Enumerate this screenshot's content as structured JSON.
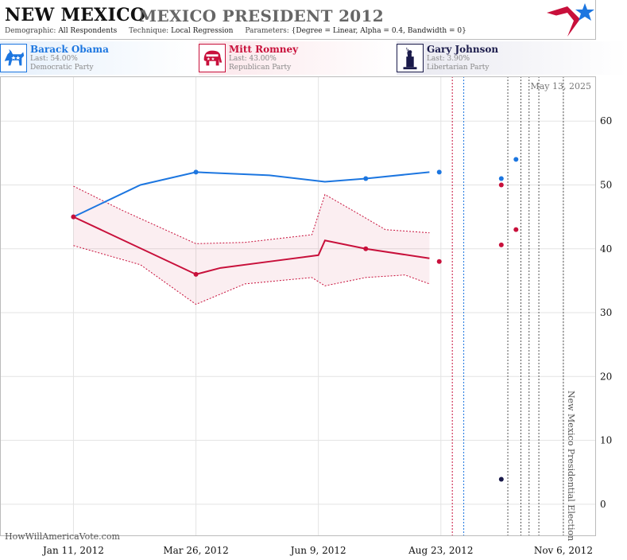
{
  "header": {
    "state": "NEW MEXICO",
    "race": "MEXICO PRESIDENT 2012",
    "demographic_label": "Demographic:",
    "demographic_value": "All Respondents",
    "technique_label": "Technique:",
    "technique_value": "Local Regression",
    "parameters_label": "Parameters:",
    "parameters_value": "{Degree = Linear, Alpha = 0.4, Bandwidth = 0}"
  },
  "candidates": [
    {
      "name": "Barack Obama",
      "last": "Last: 54.00%",
      "party": "Democratic Party",
      "color": "#1c76e0",
      "icon": "democrat-donkey-icon"
    },
    {
      "name": "Mitt Romney",
      "last": "Last: 43.00%",
      "party": "Republican Party",
      "color": "#c8103b",
      "icon": "republican-elephant-icon"
    },
    {
      "name": "Gary Johnson",
      "last": "Last: 3.90%",
      "party": "Libertarian Party",
      "color": "#1a1a4a",
      "icon": "libertarian-liberty-icon"
    }
  ],
  "chart_data": {
    "type": "line",
    "date_stamp": "May 13, 2025",
    "watermark": "HowWillAmericaVote.com",
    "x_ticks": [
      "Jan 11, 2012",
      "Mar 26, 2012",
      "Jun 9, 2012",
      "Aug 23, 2012",
      "Nov 6, 2012"
    ],
    "x_range": [
      "2011-11-27",
      "2012-11-26"
    ],
    "y_ticks": [
      0,
      10,
      20,
      30,
      40,
      50,
      60
    ],
    "ylim": [
      -5,
      67
    ],
    "grid": true,
    "series": [
      {
        "name": "Barack Obama",
        "color": "#1c76e0",
        "line": [
          [
            "2012-01-11",
            45
          ],
          [
            "2012-02-21",
            50
          ],
          [
            "2012-03-26",
            52
          ],
          [
            "2012-05-10",
            51.5
          ],
          [
            "2012-06-13",
            50.5
          ],
          [
            "2012-07-08",
            51
          ],
          [
            "2012-08-16",
            52
          ]
        ],
        "points": [
          [
            "2012-01-11",
            45
          ],
          [
            "2012-03-26",
            52
          ],
          [
            "2012-07-08",
            51
          ],
          [
            "2012-08-22",
            52
          ],
          [
            "2012-09-29",
            51
          ],
          [
            "2012-10-08",
            54
          ]
        ]
      },
      {
        "name": "Mitt Romney",
        "color": "#c8103b",
        "line": [
          [
            "2012-01-11",
            45
          ],
          [
            "2012-03-26",
            36
          ],
          [
            "2012-04-10",
            37
          ],
          [
            "2012-05-10",
            38
          ],
          [
            "2012-06-09",
            39
          ],
          [
            "2012-06-13",
            41.3
          ],
          [
            "2012-07-08",
            40
          ],
          [
            "2012-08-16",
            38.5
          ]
        ],
        "band_upper": [
          [
            "2012-01-11",
            49.8
          ],
          [
            "2012-02-10",
            46
          ],
          [
            "2012-03-26",
            40.8
          ],
          [
            "2012-04-25",
            41
          ],
          [
            "2012-06-05",
            42.2
          ],
          [
            "2012-06-13",
            48.5
          ],
          [
            "2012-06-30",
            46
          ],
          [
            "2012-07-20",
            43
          ],
          [
            "2012-08-16",
            42.5
          ]
        ],
        "band_lower": [
          [
            "2012-01-11",
            40.5
          ],
          [
            "2012-02-21",
            37.5
          ],
          [
            "2012-03-26",
            31.3
          ],
          [
            "2012-04-25",
            34.5
          ],
          [
            "2012-06-05",
            35.5
          ],
          [
            "2012-06-13",
            34.2
          ],
          [
            "2012-07-08",
            35.5
          ],
          [
            "2012-08-01",
            35.9
          ],
          [
            "2012-08-16",
            34.5
          ]
        ],
        "points": [
          [
            "2012-01-11",
            45
          ],
          [
            "2012-03-26",
            36
          ],
          [
            "2012-07-08",
            40
          ],
          [
            "2012-08-22",
            38
          ],
          [
            "2012-09-29",
            40.6
          ],
          [
            "2012-09-29",
            50
          ],
          [
            "2012-10-08",
            43
          ]
        ]
      },
      {
        "name": "Gary Johnson",
        "color": "#1a1a4a",
        "line": [],
        "points": [
          [
            "2012-09-29",
            3.9
          ]
        ]
      }
    ],
    "event_lines": [
      {
        "date": "2012-08-30",
        "color": "#c8103b",
        "style": "dashed"
      },
      {
        "date": "2012-09-06",
        "color": "#1c76e0",
        "style": "dashed"
      },
      {
        "date": "2012-10-03",
        "color": "#555555",
        "style": "dashed"
      },
      {
        "date": "2012-10-11",
        "color": "#555555",
        "style": "dashed"
      },
      {
        "date": "2012-10-16",
        "color": "#555555",
        "style": "dashed"
      },
      {
        "date": "2012-10-22",
        "color": "#555555",
        "style": "dashed"
      },
      {
        "date": "2012-11-06",
        "color": "#555555",
        "style": "dashed"
      }
    ],
    "annotation": "New Mexico Presidential Election"
  }
}
